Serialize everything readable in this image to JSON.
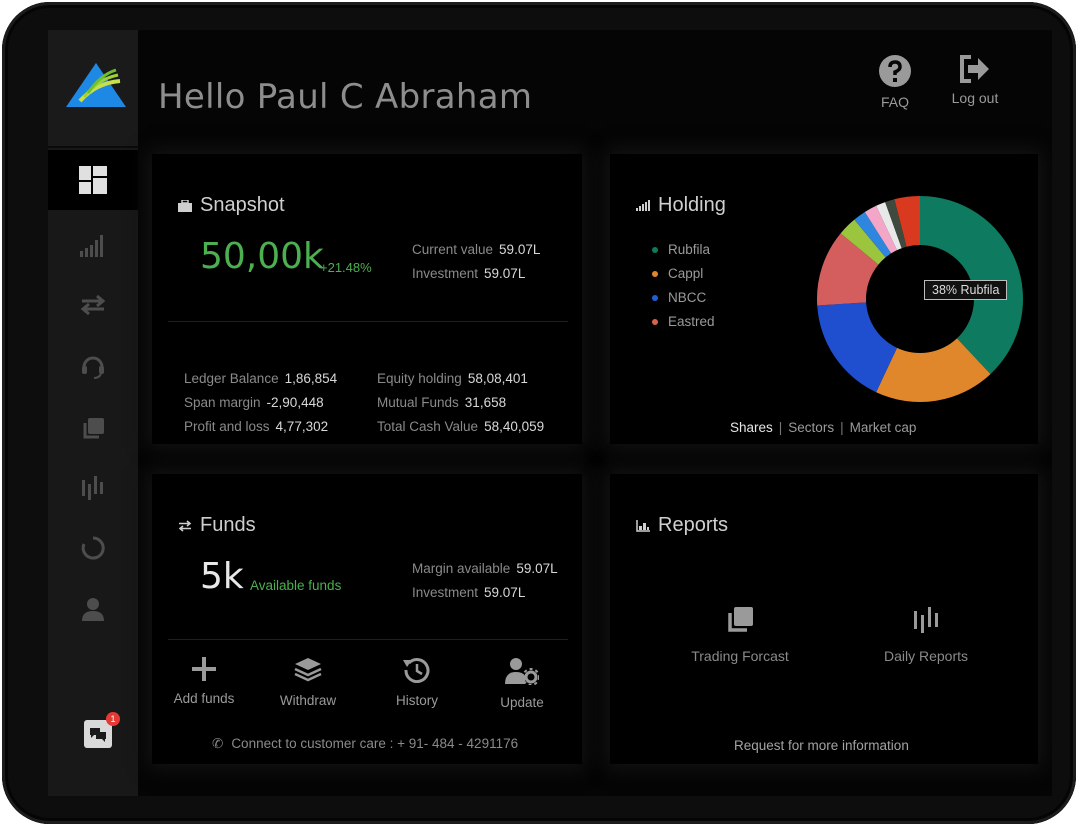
{
  "header": {
    "greeting": "Hello Paul C Abraham",
    "faq_label": "FAQ",
    "logout_label": "Log out"
  },
  "sidebar": {
    "items": [
      {
        "name": "dashboard-icon",
        "active": true
      },
      {
        "name": "signal-bars-icon",
        "active": false
      },
      {
        "name": "transfer-arrows-icon",
        "active": false
      },
      {
        "name": "headset-icon",
        "active": false
      },
      {
        "name": "copy-icon",
        "active": false
      },
      {
        "name": "waveform-icon",
        "active": false
      },
      {
        "name": "refresh-circle-icon",
        "active": false
      },
      {
        "name": "user-icon",
        "active": false
      }
    ],
    "chat_badge": "1"
  },
  "snapshot": {
    "title": "Snapshot",
    "value": "50,00k",
    "change": "+21.48%",
    "current_value_label": "Current value",
    "current_value": "59.07L",
    "investment_label": "Investment",
    "investment": "59.07L",
    "ledger_balance_label": "Ledger Balance",
    "ledger_balance": "1,86,854",
    "span_margin_label": "Span margin",
    "span_margin": "-2,90,448",
    "profit_loss_label": "Profit and loss",
    "profit_loss": "4,77,302",
    "equity_holding_label": "Equity holding",
    "equity_holding": "58,08,401",
    "mutual_funds_label": "Mutual Funds",
    "mutual_funds": "31,658",
    "total_cash_label": "Total Cash Value",
    "total_cash": "58,40,059"
  },
  "holding": {
    "title": "Holding",
    "legend": [
      {
        "label": "Rubfila",
        "color": "#0e7a5f"
      },
      {
        "label": "Cappl",
        "color": "#e0872b"
      },
      {
        "label": "NBCC",
        "color": "#1f5fd6"
      },
      {
        "label": "Eastred",
        "color": "#d7624f"
      }
    ],
    "tooltip": "38% Rubfila",
    "tabs": {
      "shares": "Shares",
      "sectors": "Sectors",
      "market_cap": "Market cap"
    }
  },
  "chart_data": {
    "type": "pie",
    "donut": true,
    "slices": [
      {
        "label": "Rubfila",
        "value": 38,
        "color": "#0e7a5f"
      },
      {
        "label": "Cappl",
        "value": 19,
        "color": "#e0872b"
      },
      {
        "label": "NBCC",
        "value": 17,
        "color": "#1f4fcf"
      },
      {
        "label": "Eastred",
        "value": 12,
        "color": "#d45d5d"
      },
      {
        "label": "",
        "value": 3,
        "color": "#9bc53d"
      },
      {
        "label": "",
        "value": 2,
        "color": "#2e86de"
      },
      {
        "label": "",
        "value": 2,
        "color": "#f3a6c8"
      },
      {
        "label": "",
        "value": 1.5,
        "color": "#e8e8e8"
      },
      {
        "label": "",
        "value": 1.5,
        "color": "#3d4a3d"
      },
      {
        "label": "",
        "value": 4,
        "color": "#d9391f"
      }
    ]
  },
  "funds": {
    "title": "Funds",
    "value": "5k",
    "available_label": "Available funds",
    "margin_label": "Margin available",
    "margin": "59.07L",
    "investment_label": "Investment",
    "investment": "59.07L",
    "actions": {
      "add": "Add funds",
      "withdraw": "Withdraw",
      "history": "History",
      "update": "Update"
    },
    "customer_care": "Connect to customer care : + 91- 484 - 4291176"
  },
  "reports": {
    "title": "Reports",
    "trading_forcast": "Trading Forcast",
    "daily_reports": "Daily Reports",
    "request_info": "Request for more information"
  }
}
